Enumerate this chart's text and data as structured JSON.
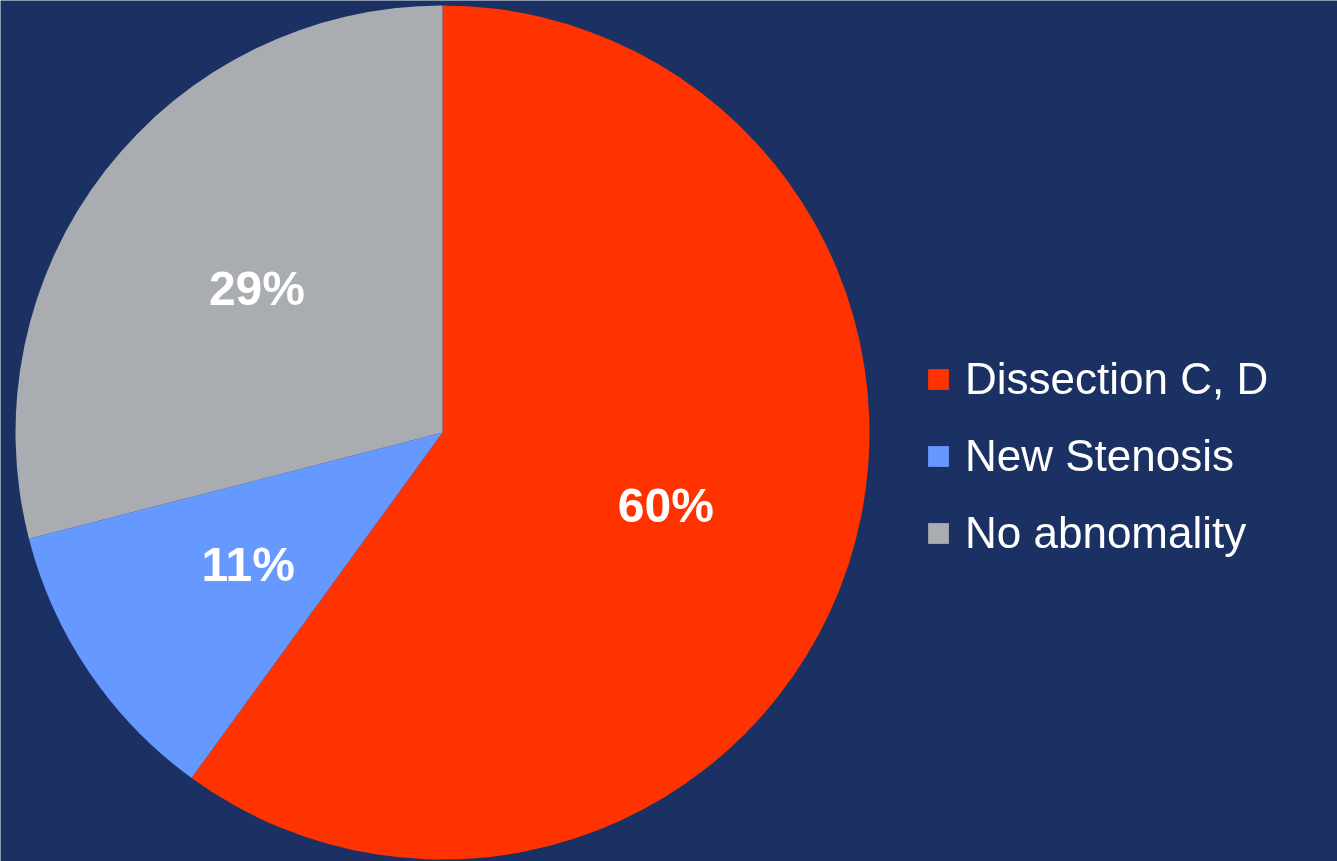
{
  "chart_data": {
    "type": "pie",
    "categories": [
      "Dissection C, D",
      "New Stenosis",
      "No abnomality"
    ],
    "values": [
      60,
      11,
      29
    ],
    "colors": [
      "#ff3300",
      "#6699ff",
      "#a9acb1"
    ],
    "value_labels": [
      "60%",
      "11%",
      "29%"
    ],
    "legend": "right"
  }
}
